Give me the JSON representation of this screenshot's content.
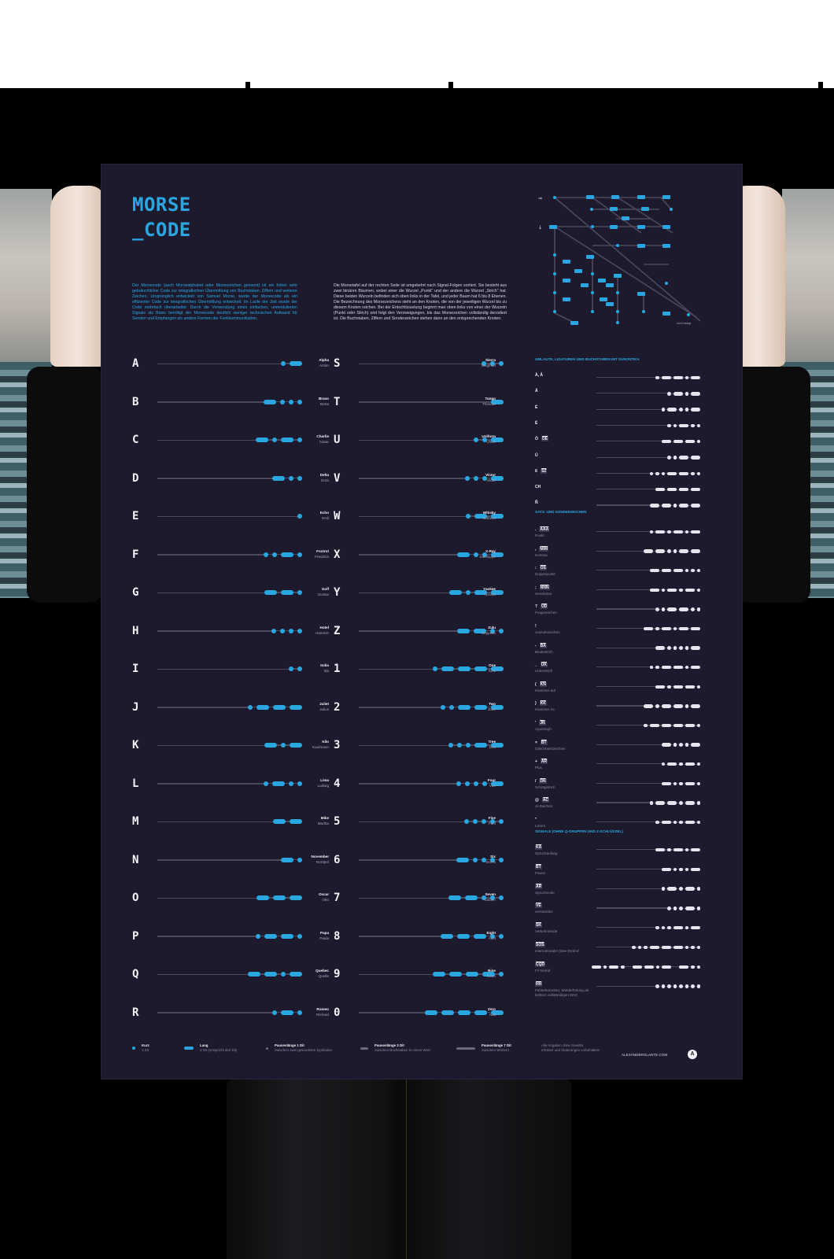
{
  "poster": {
    "title_line1": "MORSE",
    "title_line2": "_CODE",
    "intro_left": "Der Morsecode (auch Morsealphabet oder Morsezeichen genannt) ist ein früher sehr gebräuchlicher Code zur telegrafischen Übermittlung von Buchstaben, Ziffern und weiterer Zeichen. Ursprünglich entwickelt von Samuel Morse, wurde der Morsecode als ein effizienter Code zur telegrafischen Übermittlung entwickelt. Im Laufe der Zeit wurde der Code mehrfach überarbeitet. Durch die Verwendung eines einfachen, unmodulierten Signals als Basis benötigt der Morsecode deutlich weniger technischen Aufwand für Senden und Empfangen als andere Formen der Funkkommunikation.",
    "intro_right": "Die Morsetafel auf der rechten Seite ist umgekehrt nach Signal-Folgen sortiert. Sie besteht aus zwei binären Bäumen, wobei einer die Wurzel „Punkt“ und der andere die Wurzel „Strich“ hat. Diese beiden Wurzeln befinden sich oben links in der Tafel, und jeder Baum hat 6 bis 8 Ebenen. Die Bezeichnung des Morsezeichens steht an den Knoten, die von der jeweiligen Wurzel bis zu diesem Knoten reichen. Bei der Entschlüsselung beginnt man oben links von einer der Wurzeln (Punkt oder Strich) und folgt den Verzweigungen, bis das Morsezeichen vollständig decodiert ist. Die Buchstaben, Ziffern und Sonderzeichen stehen dann an den entsprechenden Knoten.",
    "tree_caption": "nicht belegt",
    "colors": {
      "background": "#1d1a2e",
      "accent": "#2aa7e0",
      "light_symbol": "#e6e5ee",
      "line": "#4b4a5c"
    }
  },
  "column_left": [
    {
      "char": "A",
      "code": ".-",
      "nato": "Alpha",
      "german": "Anton"
    },
    {
      "char": "B",
      "code": "-...",
      "nato": "Bravo",
      "german": "Berta"
    },
    {
      "char": "C",
      "code": "-.-.",
      "nato": "Charlie",
      "german": "Cäsar"
    },
    {
      "char": "D",
      "code": "-..",
      "nato": "Delta",
      "german": "Dora"
    },
    {
      "char": "E",
      "code": ".",
      "nato": "Echo",
      "german": "Emil"
    },
    {
      "char": "F",
      "code": "..-.",
      "nato": "Foxtrot",
      "german": "Friedrich"
    },
    {
      "char": "G",
      "code": "--.",
      "nato": "Golf",
      "german": "Gustav"
    },
    {
      "char": "H",
      "code": "....",
      "nato": "Hotel",
      "german": "Heinrich"
    },
    {
      "char": "I",
      "code": "..",
      "nato": "India",
      "german": "Ida"
    },
    {
      "char": "J",
      "code": ".---",
      "nato": "Juliet",
      "german": "Julius"
    },
    {
      "char": "K",
      "code": "-.-",
      "nato": "Kilo",
      "german": "Kaufmann"
    },
    {
      "char": "L",
      "code": ".-..",
      "nato": "Lima",
      "german": "Ludwig"
    },
    {
      "char": "M",
      "code": "--",
      "nato": "Mike",
      "german": "Martha"
    },
    {
      "char": "N",
      "code": "-.",
      "nato": "November",
      "german": "Nordpol"
    },
    {
      "char": "O",
      "code": "---",
      "nato": "Oscar",
      "german": "Otto"
    },
    {
      "char": "P",
      "code": ".--.",
      "nato": "Papa",
      "german": "Paula"
    },
    {
      "char": "Q",
      "code": "--.-",
      "nato": "Quebec",
      "german": "Quelle"
    },
    {
      "char": "R",
      "code": ".-.",
      "nato": "Romeo",
      "german": "Richard"
    }
  ],
  "column_middle": [
    {
      "char": "S",
      "code": "...",
      "nato": "Sierra",
      "german": "Siegfried"
    },
    {
      "char": "T",
      "code": "-",
      "nato": "Tango",
      "german": "Theodor"
    },
    {
      "char": "U",
      "code": "..-",
      "nato": "Uniform",
      "german": "Ulrich"
    },
    {
      "char": "V",
      "code": "...-",
      "nato": "Victor",
      "german": "Viktor"
    },
    {
      "char": "W",
      "code": ".--",
      "nato": "Whisky",
      "german": "Wilhelm"
    },
    {
      "char": "X",
      "code": "-..-",
      "nato": "X-Ray",
      "german": "Xanthippe"
    },
    {
      "char": "Y",
      "code": "-.--",
      "nato": "Yankee",
      "german": "Ypsilon"
    },
    {
      "char": "Z",
      "code": "--..",
      "nato": "Zulu",
      "german": "Zeppelin"
    },
    {
      "char": "1",
      "code": ".----",
      "nato": "One",
      "german": "Eins"
    },
    {
      "char": "2",
      "code": "..---",
      "nato": "Two",
      "german": "Zwei"
    },
    {
      "char": "3",
      "code": "...--",
      "nato": "Tree",
      "german": "Drei"
    },
    {
      "char": "4",
      "code": "....-",
      "nato": "Four",
      "german": "Vier"
    },
    {
      "char": "5",
      "code": ".....",
      "nato": "Five",
      "german": "Fünf"
    },
    {
      "char": "6",
      "code": "-....",
      "nato": "Six",
      "german": "Sechs"
    },
    {
      "char": "7",
      "code": "--...",
      "nato": "Seven",
      "german": "Sieben"
    },
    {
      "char": "8",
      "code": "---..",
      "nato": "Eight",
      "german": "Acht"
    },
    {
      "char": "9",
      "code": "----.",
      "nato": "Nine",
      "german": "Neun"
    },
    {
      "char": "0",
      "code": "-----",
      "nato": "Zero",
      "german": "Null"
    }
  ],
  "section_umlaute": {
    "heading": "UMLAUTE, LIGATUREN UND BUCHSTABEN MIT DIAKRITIKA",
    "rows": [
      {
        "label": "À, Å",
        "pro": "",
        "sub": "",
        "code": ".--.-"
      },
      {
        "label": "Ä",
        "pro": "",
        "sub": "",
        "code": ".-.-"
      },
      {
        "label": "È",
        "pro": "",
        "sub": "",
        "code": ".-..-"
      },
      {
        "label": "É",
        "pro": "",
        "sub": "",
        "code": "..-.."
      },
      {
        "label": "Ö",
        "pro": "OE",
        "sub": "",
        "code": "---."
      },
      {
        "label": "Ü",
        "pro": "",
        "sub": "",
        "code": "..--"
      },
      {
        "label": "ß",
        "pro": "SZ",
        "sub": "",
        "code": "...--.."
      },
      {
        "label": "CH",
        "pro": "",
        "sub": "",
        "code": "----"
      },
      {
        "label": "Ñ",
        "pro": "",
        "sub": "",
        "code": "--.--"
      }
    ]
  },
  "section_satz": {
    "heading": "SATZ- UND SONDERZEICHEN",
    "rows": [
      {
        "label": ".",
        "pro": "AAA",
        "sub": "Punkt",
        "code": ".-.-.-"
      },
      {
        "label": ",",
        "pro": "MIM",
        "sub": "Komma",
        "code": "--..--"
      },
      {
        "label": ":",
        "pro": "OS",
        "sub": "Doppelpunkt",
        "code": "---..."
      },
      {
        "label": ";",
        "pro": "NNN",
        "sub": "Semikolon",
        "code": "-.-.-."
      },
      {
        "label": "?",
        "pro": "UD",
        "sub": "Fragezeichen",
        "code": "..--.."
      },
      {
        "label": "!",
        "pro": "",
        "sub": "Ausrufezeichen",
        "code": "-.-.--"
      },
      {
        "label": "-",
        "pro": "BA",
        "sub": "Bindestrich",
        "code": "-....-"
      },
      {
        "label": "_",
        "pro": "UK",
        "sub": "Unterstrich",
        "code": "..--.-"
      },
      {
        "label": "(",
        "pro": "KN",
        "sub": "Klammer auf",
        "code": "-.--."
      },
      {
        "label": ")",
        "pro": "KK",
        "sub": "Klammer zu",
        "code": "-.--.-"
      },
      {
        "label": "'",
        "pro": "JN",
        "sub": "Apostroph",
        "code": ".----."
      },
      {
        "label": "=",
        "pro": "BT",
        "sub": "Gleichheitszeichen",
        "code": "-...-"
      },
      {
        "label": "+",
        "pro": "AR",
        "sub": "Plus",
        "code": ".-.-."
      },
      {
        "label": "/",
        "pro": "DN",
        "sub": "Schrägstrich",
        "code": "-..-."
      },
      {
        "label": "@",
        "pro": "AC",
        "sub": "At-Zeichen",
        "code": ".--.-."
      },
      {
        "label": "\"",
        "pro": "",
        "sub": "Lorem",
        "code": ".-..-."
      }
    ]
  },
  "section_signale": {
    "heading": "SIGNALE (OHNE Q-GRUPPEN UND Z-SCHLÜSSEL)",
    "rows": [
      {
        "label": "",
        "pro": "KA",
        "sub": "Spruchanfang",
        "code": "-.-.-"
      },
      {
        "label": "",
        "pro": "BT",
        "sub": "Pause",
        "code": "-...-"
      },
      {
        "label": "",
        "pro": "AR",
        "sub": "Spruchende",
        "code": ".-.-."
      },
      {
        "label": "",
        "pro": "VE",
        "sub": "verstanden",
        "code": "...-."
      },
      {
        "label": "",
        "pro": "SK",
        "sub": "Verkehrsende",
        "code": "...-.-"
      },
      {
        "label": "",
        "pro": "SOS",
        "sub": "internationaler (See-)Notruf",
        "code": "...---..."
      },
      {
        "label": "",
        "pro": "CQD",
        "sub": "FT-Notruf",
        "code": "-.-. --.- -.."
      },
      {
        "label": "",
        "pro": "HH",
        "sub": "Fehlerkorrektur, Wiederholung ab letztem vollständigen Wort",
        "code": "........"
      }
    ]
  },
  "footer": {
    "legend": [
      {
        "symbol": "dot",
        "title": "Kurz",
        "desc": "1 Dit"
      },
      {
        "symbol": "dash",
        "title": "Lang",
        "desc": "3 Dit (entspricht drei Dit)"
      },
      {
        "symbol": "small-dot",
        "title": "Pausenlänge 1 Dit",
        "desc": "zwischen zwei gesendeten Symbolen"
      },
      {
        "symbol": "gray-dash",
        "title": "Pausenlänge 3 Dit",
        "desc": "zwischen Buchstaben in einem Wort"
      },
      {
        "symbol": "long-gray",
        "title": "Pausenlänge 7 Dit",
        "desc": "zwischen Wörtern"
      }
    ],
    "disclaimer_line1": "Alle Angaben ohne Gewähr.",
    "disclaimer_line2": "Irrtümer und Änderungen vorbehalten!",
    "website": "ALEXANDERGLANTE.COM",
    "logo_letter": "A"
  }
}
